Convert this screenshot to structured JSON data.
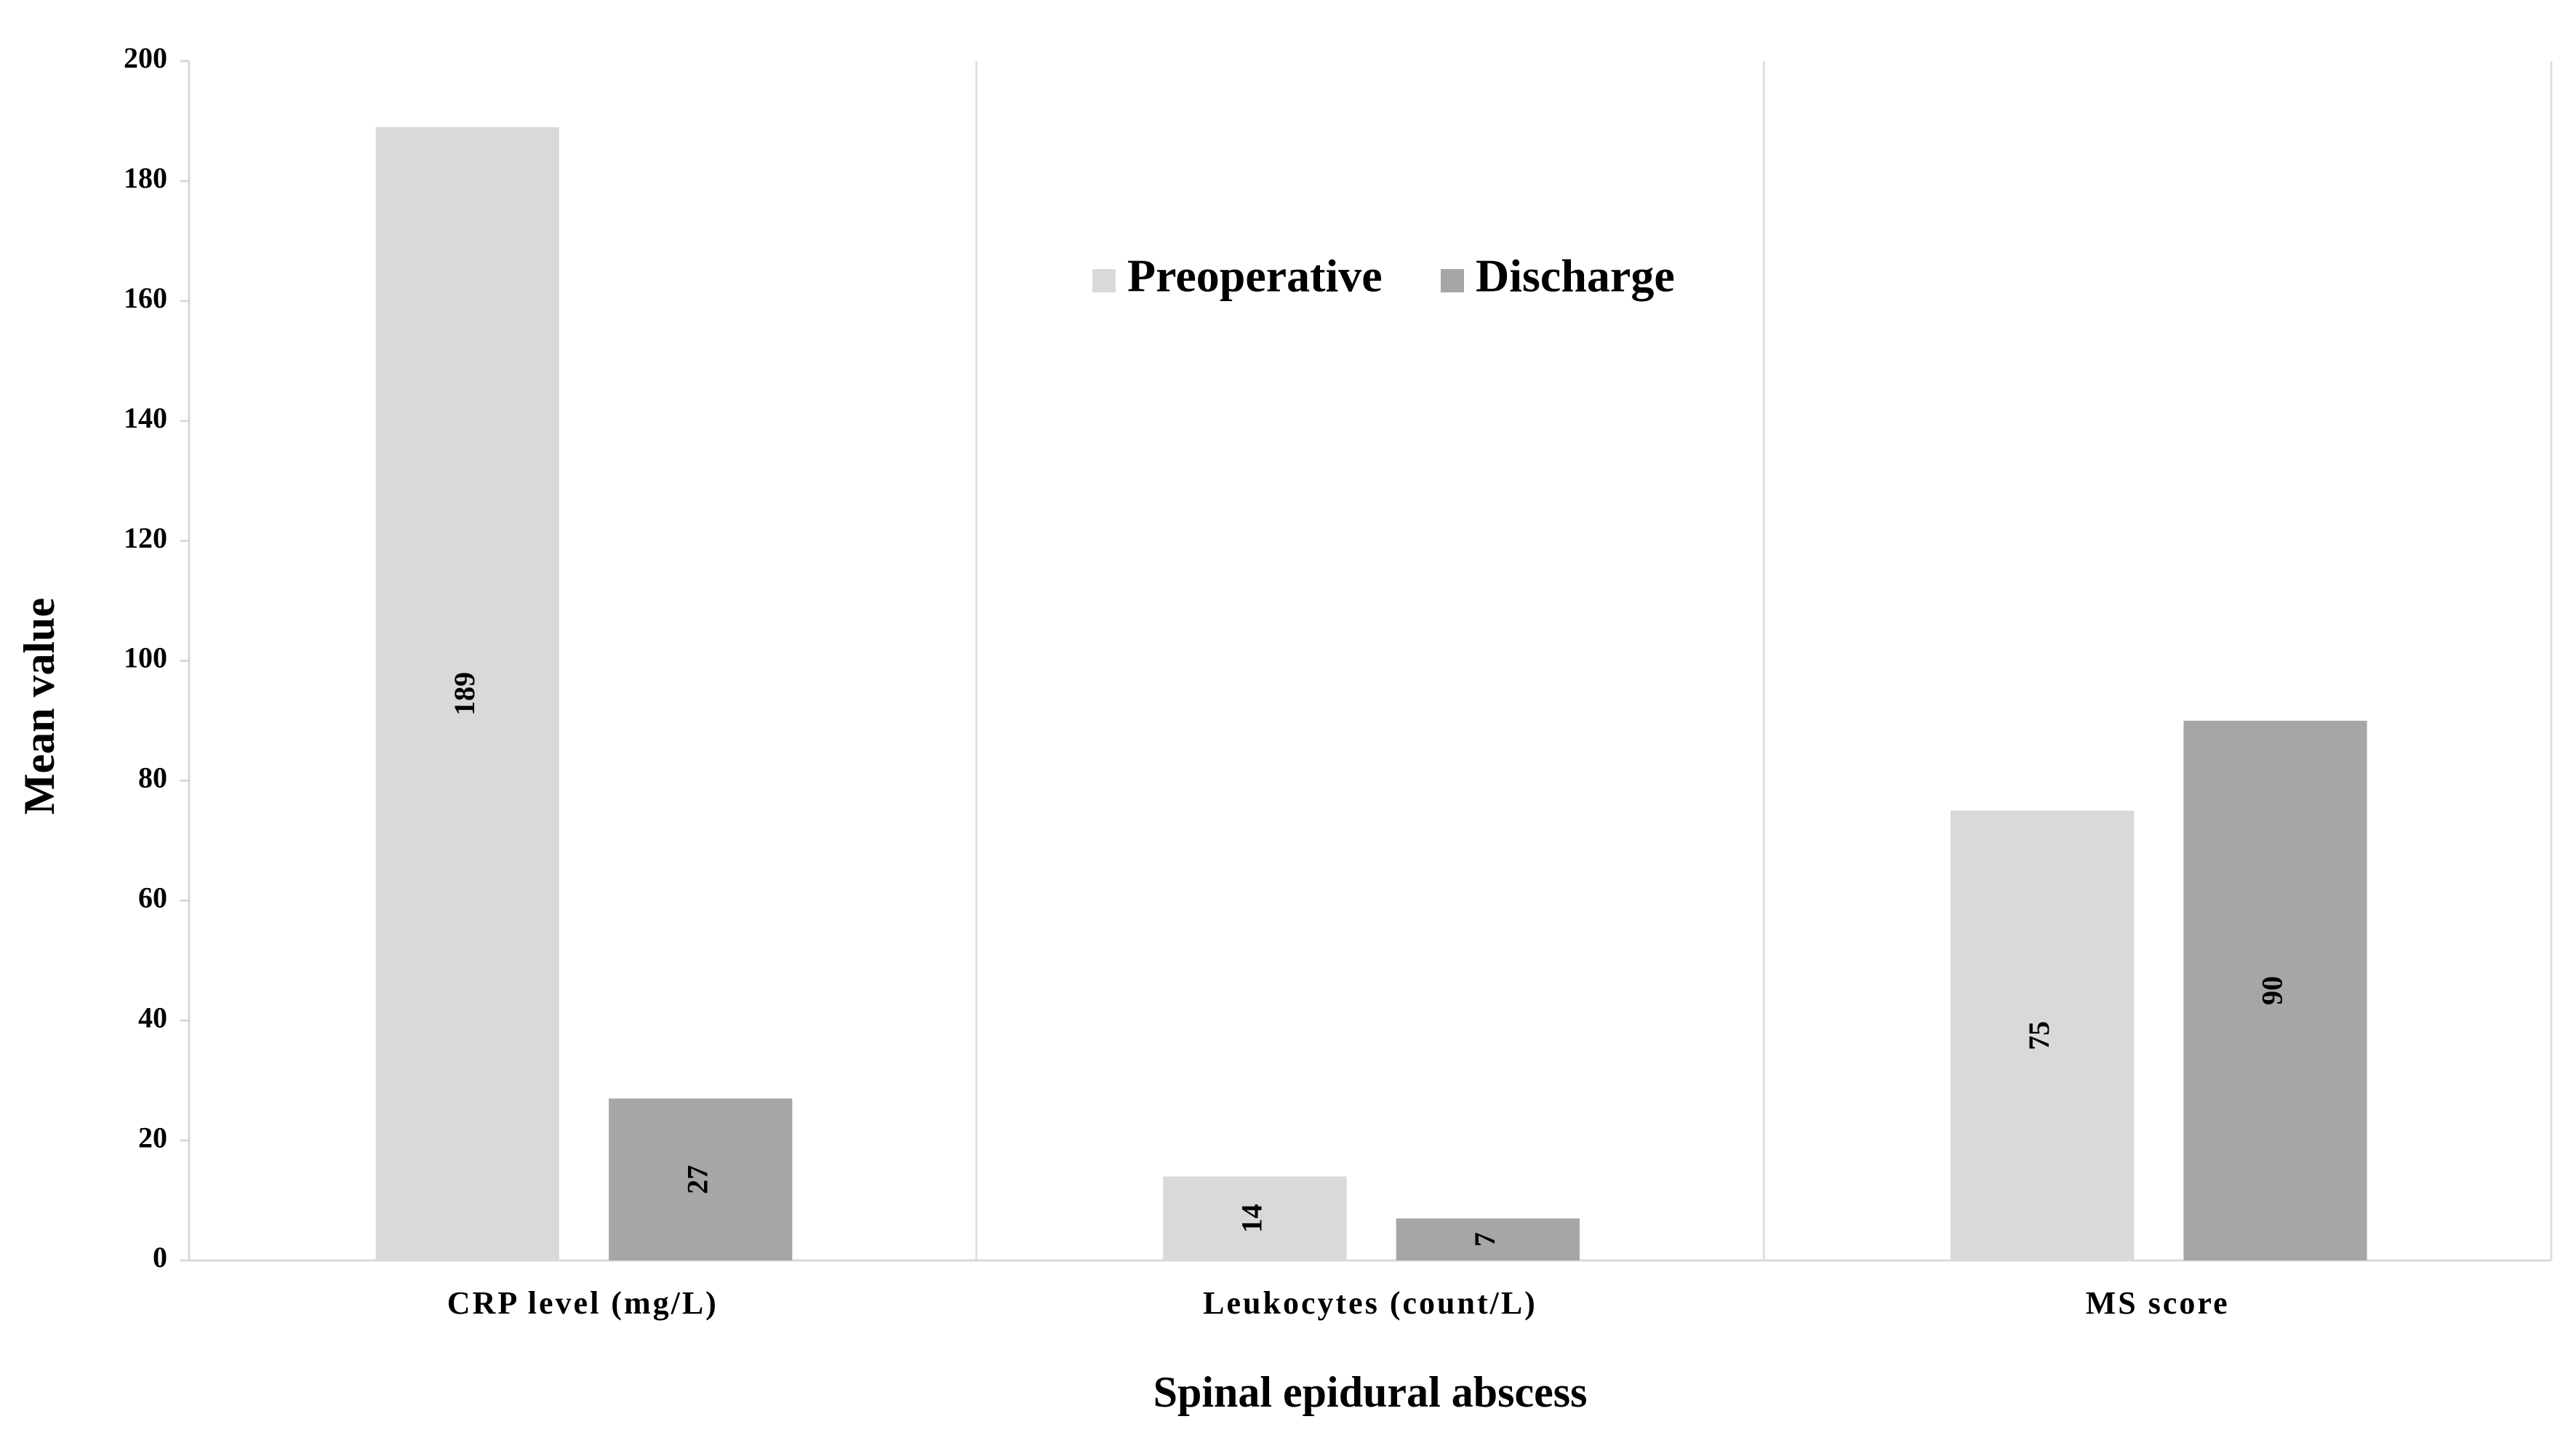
{
  "chart_data": {
    "type": "bar",
    "x_label": "Spinal epidural abscess",
    "y_label": "Mean value",
    "categories": [
      "CRP level (mg/L)",
      "Leukocytes (count/L)",
      "MS score"
    ],
    "series": [
      {
        "name": "Preoperative",
        "color": "#d9d9d9",
        "values": [
          189,
          14,
          75
        ]
      },
      {
        "name": "Discharge",
        "color": "#a6a6a6",
        "values": [
          27,
          7,
          90
        ]
      }
    ],
    "ylim": [
      0,
      200
    ],
    "yticks": [
      0,
      20,
      40,
      60,
      80,
      100,
      120,
      140,
      160,
      180,
      200
    ],
    "legend": "top-center"
  }
}
